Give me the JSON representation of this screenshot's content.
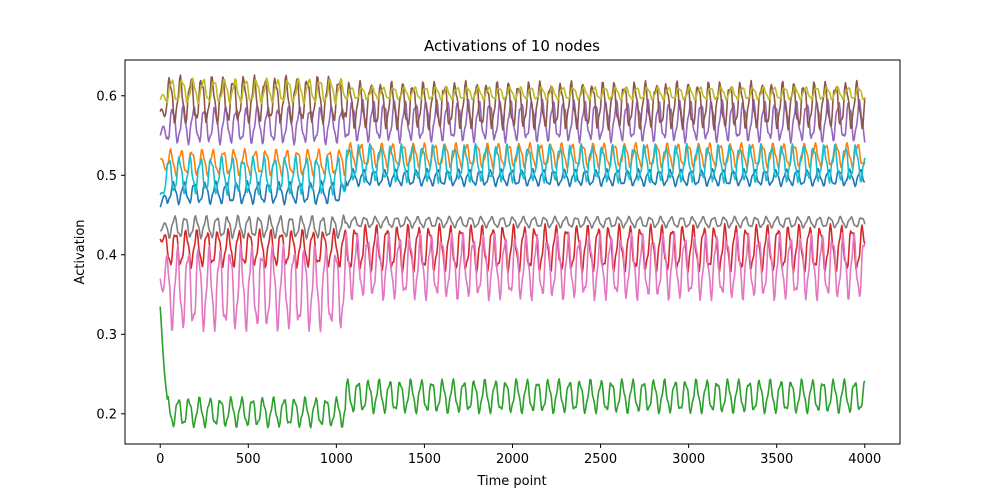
{
  "chart_data": {
    "type": "line",
    "title": "Activations of 10 nodes",
    "xlabel": "Time point",
    "ylabel": "Activation",
    "xlim": [
      -200,
      4200
    ],
    "ylim": [
      0.162,
      0.645
    ],
    "xticks": [
      0,
      500,
      1000,
      1500,
      2000,
      2500,
      3000,
      3500,
      4000
    ],
    "yticks": [
      0.2,
      0.3,
      0.4,
      0.5,
      0.6
    ],
    "ytick_labels": [
      "0.2",
      "0.3",
      "0.4",
      "0.5",
      "0.6"
    ],
    "grid": false,
    "legend": false,
    "x_range": [
      0,
      4000
    ],
    "oscillation_period": 60,
    "series": [
      {
        "color": "#1f77b4",
        "start": 0.46,
        "phases": [
          {
            "until": 1050,
            "center": 0.478,
            "amp": 0.012
          },
          {
            "until": 4000,
            "center": 0.497,
            "amp": 0.009
          }
        ]
      },
      {
        "color": "#ff7f0e",
        "start": 0.52,
        "phases": [
          {
            "until": 1050,
            "center": 0.516,
            "amp": 0.014
          },
          {
            "until": 4000,
            "center": 0.525,
            "amp": 0.013
          }
        ]
      },
      {
        "color": "#2ca02c",
        "start": 0.335,
        "phases": [
          {
            "until": 1050,
            "center": 0.202,
            "amp": 0.016
          },
          {
            "until": 4000,
            "center": 0.222,
            "amp": 0.018
          }
        ]
      },
      {
        "color": "#d62728",
        "start": 0.42,
        "phases": [
          {
            "until": 1050,
            "center": 0.408,
            "amp": 0.02
          },
          {
            "until": 4000,
            "center": 0.408,
            "amp": 0.025
          }
        ]
      },
      {
        "color": "#9467bd",
        "start": 0.55,
        "phases": [
          {
            "until": 1050,
            "center": 0.563,
            "amp": 0.02
          },
          {
            "until": 4000,
            "center": 0.568,
            "amp": 0.022
          }
        ]
      },
      {
        "color": "#8c564b",
        "start": 0.58,
        "phases": [
          {
            "until": 1050,
            "center": 0.595,
            "amp": 0.025
          },
          {
            "until": 4000,
            "center": 0.588,
            "amp": 0.025
          }
        ]
      },
      {
        "color": "#e377c2",
        "start": 0.37,
        "phases": [
          {
            "until": 1050,
            "center": 0.358,
            "amp": 0.045
          },
          {
            "until": 4000,
            "center": 0.385,
            "amp": 0.035
          }
        ]
      },
      {
        "color": "#7f7f7f",
        "start": 0.43,
        "phases": [
          {
            "until": 1050,
            "center": 0.435,
            "amp": 0.012
          },
          {
            "until": 4000,
            "center": 0.441,
            "amp": 0.006
          }
        ]
      },
      {
        "color": "#bcbd22",
        "start": 0.595,
        "phases": [
          {
            "until": 1050,
            "center": 0.606,
            "amp": 0.013
          },
          {
            "until": 4000,
            "center": 0.603,
            "amp": 0.007
          }
        ]
      },
      {
        "color": "#17becf",
        "start": 0.475,
        "phases": [
          {
            "until": 1050,
            "center": 0.5,
            "amp": 0.02
          },
          {
            "until": 4000,
            "center": 0.515,
            "amp": 0.02
          }
        ]
      }
    ]
  }
}
